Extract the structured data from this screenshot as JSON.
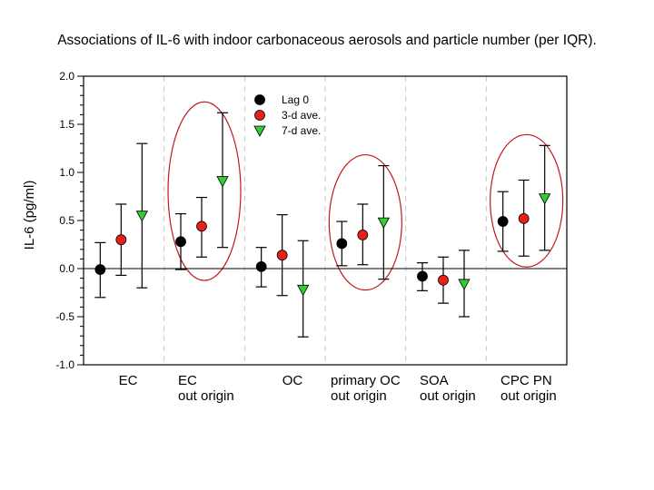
{
  "chart_data": {
    "type": "scatter",
    "title": "Associations of IL-6 with indoor carbonaceous aerosols and particle number (per IQR).",
    "xlabel": "",
    "ylabel": "IL-6 (pg/ml)",
    "ylim": [
      -1.0,
      2.0
    ],
    "yticks": [
      "-1.0",
      "-0.5",
      "0.0",
      "0.5",
      "1.0",
      "1.5",
      "2.0"
    ],
    "ytick_values": [
      -1.0,
      -0.5,
      0.0,
      0.5,
      1.0,
      1.5,
      2.0
    ],
    "grid": false,
    "reference_line": 0,
    "legend_position": "top-center",
    "categories": [
      [
        "EC"
      ],
      [
        "EC",
        "out origin"
      ],
      [
        "OC"
      ],
      [
        "primary OC",
        "out origin"
      ],
      [
        "SOA",
        "out origin"
      ],
      [
        "CPC PN",
        "out origin"
      ]
    ],
    "highlighted_categories": [
      1,
      3,
      5
    ],
    "series": [
      {
        "name": "Lag 0",
        "color": "#000000",
        "marker": "circle",
        "values": [
          -0.01,
          0.28,
          0.02,
          0.26,
          -0.08,
          0.49
        ],
        "lower": [
          -0.3,
          -0.01,
          -0.19,
          0.03,
          -0.23,
          0.18
        ],
        "upper": [
          0.27,
          0.57,
          0.22,
          0.49,
          0.06,
          0.8
        ]
      },
      {
        "name": "3-d ave.",
        "color": "#e8201a",
        "marker": "circle",
        "values": [
          0.3,
          0.44,
          0.14,
          0.35,
          -0.12,
          0.52
        ],
        "lower": [
          -0.07,
          0.12,
          -0.28,
          0.04,
          -0.36,
          0.13
        ],
        "upper": [
          0.67,
          0.74,
          0.56,
          0.67,
          0.12,
          0.92
        ]
      },
      {
        "name": "7-d ave.",
        "color": "#33cc33",
        "marker": "triangle-down",
        "values": [
          0.55,
          0.91,
          -0.22,
          0.48,
          -0.16,
          0.73
        ],
        "lower": [
          -0.2,
          0.22,
          -0.71,
          -0.11,
          -0.5,
          0.19
        ],
        "upper": [
          1.3,
          1.62,
          0.29,
          1.07,
          0.19,
          1.28
        ]
      }
    ]
  }
}
